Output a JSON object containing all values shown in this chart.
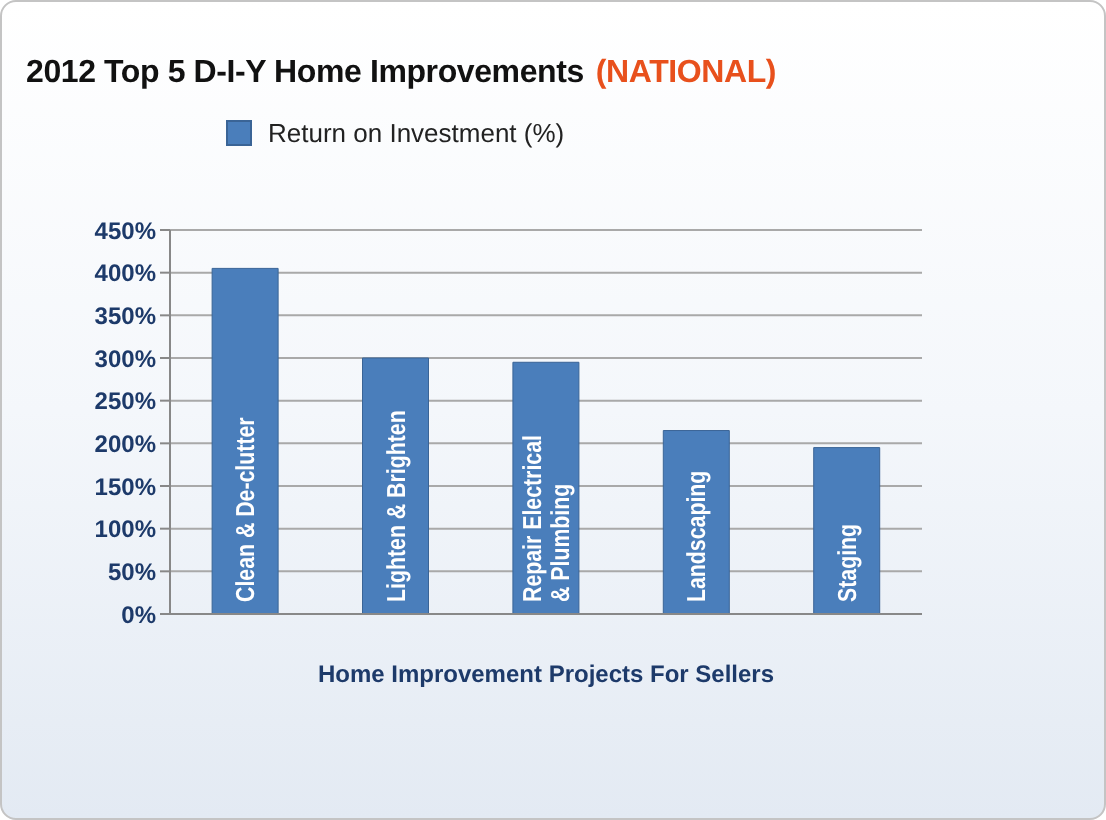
{
  "chart_data": {
    "type": "bar",
    "title": "2012 Top 5 D-I-Y Home Improvements",
    "subtitle": "(NATIONAL)",
    "xlabel": "Home Improvement Projects For Sellers",
    "categories": [
      "Clean & De-clutter",
      "Lighten & Brighten",
      "Repair Electrical & Plumbing",
      "Landscaping",
      "Staging"
    ],
    "series": [
      {
        "name": "Return on Investment (%)",
        "color": "#4a7ebb",
        "values": [
          405,
          300,
          295,
          215,
          195
        ]
      }
    ],
    "ylim": [
      0,
      450
    ],
    "yticks": [
      {
        "value": 0,
        "label": "0%"
      },
      {
        "value": 50,
        "label": "50%"
      },
      {
        "value": 100,
        "label": "100%"
      },
      {
        "value": 150,
        "label": "150%"
      },
      {
        "value": 200,
        "label": "200%"
      },
      {
        "value": 250,
        "label": "250%"
      },
      {
        "value": 300,
        "label": "300%"
      },
      {
        "value": 350,
        "label": "350%"
      },
      {
        "value": 400,
        "label": "400%"
      },
      {
        "value": 450,
        "label": "450%"
      }
    ],
    "grid": "y",
    "legend": "top"
  }
}
